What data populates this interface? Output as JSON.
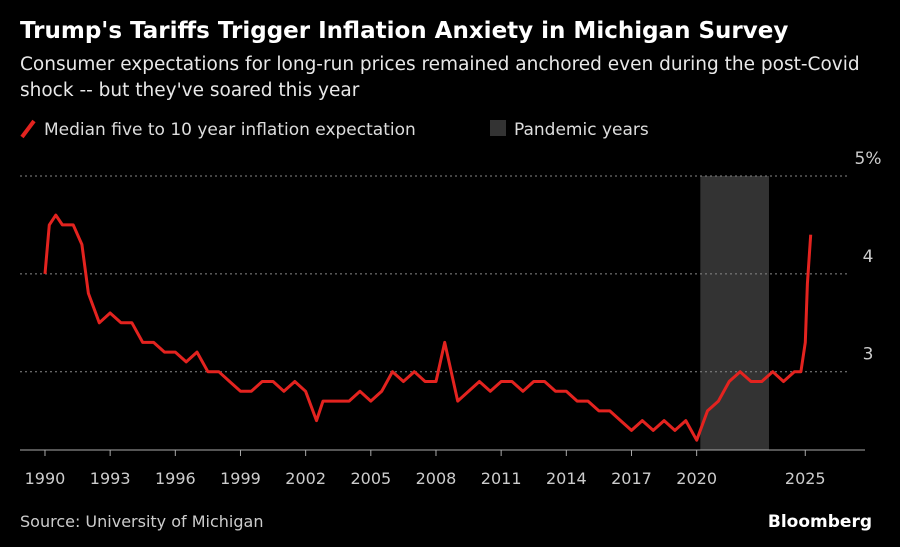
{
  "chart_data": {
    "type": "line",
    "title": "Trump's Tariffs Trigger Inflation Anxiety in Michigan Survey",
    "subtitle": "Consumer expectations for long-run prices remained anchored even during the post-Covid shock -- but they've soared this year",
    "source": "Source: University of Michigan",
    "brand": "Bloomberg",
    "x": [
      1990.0,
      1990.2,
      1990.5,
      1990.8,
      1991.3,
      1991.7,
      1992.0,
      1992.5,
      1993.0,
      1993.5,
      1994.0,
      1994.5,
      1995.0,
      1995.5,
      1996.0,
      1996.5,
      1997.0,
      1997.5,
      1998.0,
      1998.5,
      1999.0,
      1999.5,
      2000.0,
      2000.5,
      2001.0,
      2001.5,
      2002.0,
      2002.5,
      2002.8,
      2003.5,
      2004.0,
      2004.5,
      2005.0,
      2005.5,
      2006.0,
      2006.5,
      2007.0,
      2007.5,
      2008.0,
      2008.4,
      2008.7,
      2009.0,
      2009.5,
      2010.0,
      2010.5,
      2011.0,
      2011.5,
      2012.0,
      2012.5,
      2013.0,
      2013.5,
      2014.0,
      2014.5,
      2015.0,
      2015.5,
      2016.0,
      2016.5,
      2017.0,
      2017.5,
      2018.0,
      2018.5,
      2019.0,
      2019.5,
      2020.0,
      2020.5,
      2021.0,
      2021.5,
      2022.0,
      2022.5,
      2023.0,
      2023.5,
      2024.0,
      2024.5,
      2024.8,
      2025.0,
      2025.1,
      2025.25
    ],
    "series": [
      {
        "name": "Median five to 10 year inflation expectation",
        "color": "#e3231f",
        "values": [
          4.0,
          4.5,
          4.6,
          4.5,
          4.5,
          4.3,
          3.8,
          3.5,
          3.6,
          3.5,
          3.5,
          3.3,
          3.3,
          3.2,
          3.2,
          3.1,
          3.2,
          3.0,
          3.0,
          2.9,
          2.8,
          2.8,
          2.9,
          2.9,
          2.8,
          2.9,
          2.8,
          2.5,
          2.7,
          2.7,
          2.7,
          2.8,
          2.7,
          2.8,
          3.0,
          2.9,
          3.0,
          2.9,
          2.9,
          3.3,
          3.0,
          2.7,
          2.8,
          2.9,
          2.8,
          2.9,
          2.9,
          2.8,
          2.9,
          2.9,
          2.8,
          2.8,
          2.7,
          2.7,
          2.6,
          2.6,
          2.5,
          2.4,
          2.5,
          2.4,
          2.5,
          2.4,
          2.5,
          2.3,
          2.6,
          2.7,
          2.9,
          3.0,
          2.9,
          2.9,
          3.0,
          2.9,
          3.0,
          3.0,
          3.3,
          3.9,
          4.4
        ]
      }
    ],
    "shade": {
      "label": "Pandemic years",
      "start": 2020.17,
      "end": 2023.33,
      "color": "#333333"
    },
    "xlim": [
      1988.85,
      2027.75
    ],
    "xticks": [
      1990,
      1993,
      1996,
      1999,
      2002,
      2005,
      2008,
      2011,
      2014,
      2017,
      2020,
      2025
    ],
    "ylim": [
      2.2,
      5
    ],
    "yticks": [
      3,
      4,
      {
        "value": 5,
        "label": "5%"
      }
    ],
    "grid": true
  }
}
